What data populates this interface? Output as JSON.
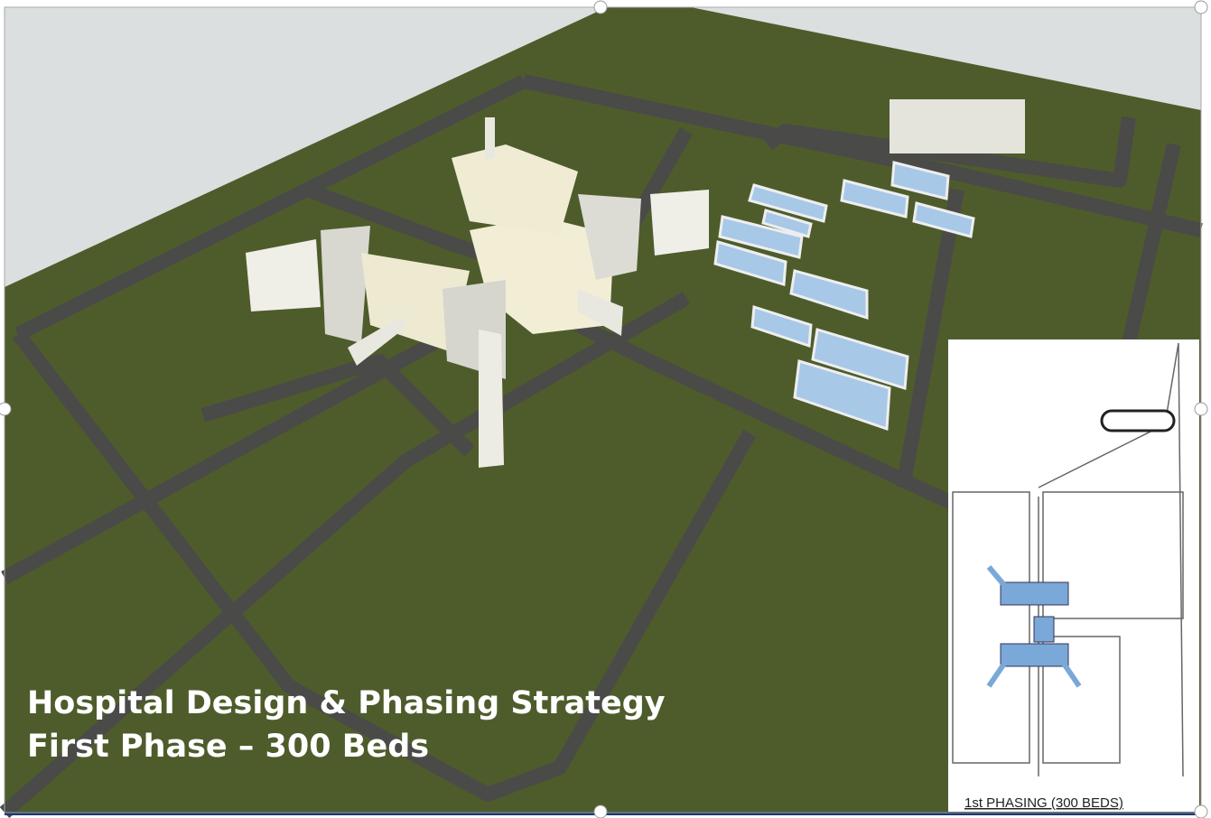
{
  "overlay": {
    "title": "Hospital Design & Phasing Strategy",
    "subtitle": "First Phase – 300 Beds"
  },
  "inset": {
    "caption": "1st PHASING (300  BEDS)"
  }
}
